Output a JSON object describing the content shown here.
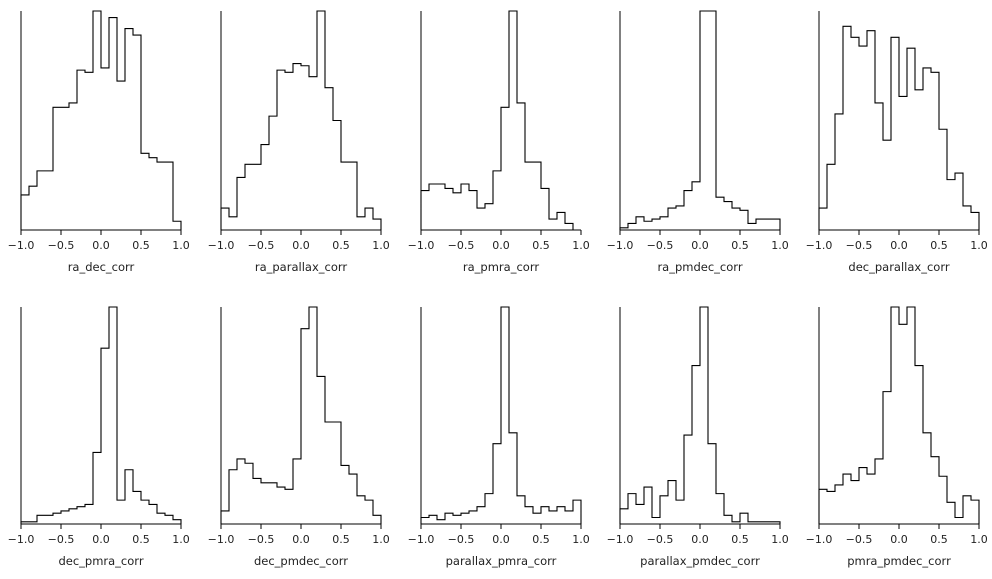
{
  "chart_data": [
    {
      "type": "histogram",
      "xlabel": "ra_dec_corr",
      "xlim": [
        -1.0,
        1.0
      ],
      "ylim": [
        0,
        1
      ],
      "xticks": [
        "−1.0",
        "−0.5",
        "0.0",
        "0.5",
        "1.0"
      ],
      "bin_edges": [
        -1.0,
        -0.9,
        -0.8,
        -0.7,
        -0.6,
        -0.5,
        -0.4,
        -0.3,
        -0.2,
        -0.1,
        0.0,
        0.1,
        0.2,
        0.3,
        0.4,
        0.5,
        0.6,
        0.7,
        0.8,
        0.9,
        1.0
      ],
      "values": [
        0.16,
        0.2,
        0.27,
        0.27,
        0.56,
        0.56,
        0.58,
        0.73,
        0.72,
        1.0,
        0.74,
        0.97,
        0.68,
        0.92,
        0.89,
        0.35,
        0.33,
        0.31,
        0.31,
        0.04
      ]
    },
    {
      "type": "histogram",
      "xlabel": "ra_parallax_corr",
      "xlim": [
        -1.0,
        1.0
      ],
      "ylim": [
        0,
        1
      ],
      "xticks": [
        "−1.0",
        "−0.5",
        "0.0",
        "0.5",
        "1.0"
      ],
      "bin_edges": [
        -1.0,
        -0.9,
        -0.8,
        -0.7,
        -0.6,
        -0.5,
        -0.4,
        -0.3,
        -0.2,
        -0.1,
        0.0,
        0.1,
        0.2,
        0.3,
        0.4,
        0.5,
        0.6,
        0.7,
        0.8,
        0.9,
        1.0
      ],
      "values": [
        0.1,
        0.06,
        0.24,
        0.3,
        0.3,
        0.39,
        0.52,
        0.73,
        0.72,
        0.76,
        0.75,
        0.7,
        1.0,
        0.65,
        0.5,
        0.31,
        0.31,
        0.06,
        0.1,
        0.05
      ]
    },
    {
      "type": "histogram",
      "xlabel": "ra_pmra_corr",
      "xlim": [
        -1.0,
        1.0
      ],
      "ylim": [
        0,
        1
      ],
      "xticks": [
        "−1.0",
        "−0.5",
        "0.0",
        "0.5",
        "1.0"
      ],
      "bin_edges": [
        -1.0,
        -0.9,
        -0.8,
        -0.7,
        -0.6,
        -0.5,
        -0.4,
        -0.3,
        -0.2,
        -0.1,
        0.0,
        0.1,
        0.2,
        0.3,
        0.4,
        0.5,
        0.6,
        0.7,
        0.8,
        0.9,
        1.0
      ],
      "values": [
        0.18,
        0.21,
        0.21,
        0.19,
        0.17,
        0.21,
        0.18,
        0.1,
        0.12,
        0.27,
        0.56,
        1.0,
        0.58,
        0.31,
        0.31,
        0.19,
        0.05,
        0.08,
        0.03,
        0.0
      ]
    },
    {
      "type": "histogram",
      "xlabel": "ra_pmdec_corr",
      "xlim": [
        -1.0,
        1.0
      ],
      "ylim": [
        0,
        1
      ],
      "xticks": [
        "−1.0",
        "−0.5",
        "0.0",
        "0.5",
        "1.0"
      ],
      "bin_edges": [
        -1.0,
        -0.9,
        -0.8,
        -0.7,
        -0.6,
        -0.5,
        -0.4,
        -0.3,
        -0.2,
        -0.1,
        0.0,
        0.1,
        0.2,
        0.3,
        0.4,
        0.5,
        0.6,
        0.7,
        0.8,
        0.9,
        1.0
      ],
      "values": [
        0.01,
        0.03,
        0.06,
        0.04,
        0.05,
        0.06,
        0.1,
        0.11,
        0.18,
        0.22,
        1.0,
        1.0,
        0.15,
        0.13,
        0.1,
        0.09,
        0.03,
        0.05,
        0.05,
        0.05
      ]
    },
    {
      "type": "histogram",
      "xlabel": "dec_parallax_corr",
      "xlim": [
        -1.0,
        1.0
      ],
      "ylim": [
        0,
        1
      ],
      "xticks": [
        "−1.0",
        "−0.5",
        "0.0",
        "0.5",
        "1.0"
      ],
      "bin_edges": [
        -1.0,
        -0.9,
        -0.8,
        -0.7,
        -0.6,
        -0.5,
        -0.4,
        -0.3,
        -0.2,
        -0.1,
        0.0,
        0.1,
        0.2,
        0.3,
        0.4,
        0.5,
        0.6,
        0.7,
        0.8,
        0.9,
        1.0
      ],
      "values": [
        0.1,
        0.3,
        0.53,
        0.93,
        0.88,
        0.84,
        0.91,
        0.58,
        0.41,
        0.88,
        0.61,
        0.83,
        0.64,
        0.74,
        0.72,
        0.46,
        0.23,
        0.26,
        0.11,
        0.08
      ]
    },
    {
      "type": "histogram",
      "xlabel": "dec_pmra_corr",
      "xlim": [
        -1.0,
        1.0
      ],
      "ylim": [
        0,
        1
      ],
      "xticks": [
        "−1.0",
        "−0.5",
        "0.0",
        "0.5",
        "1.0"
      ],
      "bin_edges": [
        -1.0,
        -0.9,
        -0.8,
        -0.7,
        -0.6,
        -0.5,
        -0.4,
        -0.3,
        -0.2,
        -0.1,
        0.0,
        0.1,
        0.2,
        0.3,
        0.4,
        0.5,
        0.6,
        0.7,
        0.8,
        0.9,
        1.0
      ],
      "values": [
        0.01,
        0.01,
        0.04,
        0.04,
        0.05,
        0.06,
        0.07,
        0.08,
        0.09,
        0.33,
        0.81,
        1.0,
        0.11,
        0.25,
        0.15,
        0.11,
        0.09,
        0.05,
        0.04,
        0.02
      ]
    },
    {
      "type": "histogram",
      "xlabel": "dec_pmdec_corr",
      "xlim": [
        -1.0,
        1.0
      ],
      "ylim": [
        0,
        1
      ],
      "xticks": [
        "−1.0",
        "−0.5",
        "0.0",
        "0.5",
        "1.0"
      ],
      "bin_edges": [
        -1.0,
        -0.9,
        -0.8,
        -0.7,
        -0.6,
        -0.5,
        -0.4,
        -0.3,
        -0.2,
        -0.1,
        0.0,
        0.1,
        0.2,
        0.3,
        0.4,
        0.5,
        0.6,
        0.7,
        0.8,
        0.9,
        1.0
      ],
      "values": [
        0.06,
        0.25,
        0.3,
        0.28,
        0.21,
        0.19,
        0.19,
        0.17,
        0.16,
        0.3,
        0.9,
        1.0,
        0.68,
        0.47,
        0.47,
        0.27,
        0.23,
        0.13,
        0.11,
        0.04
      ]
    },
    {
      "type": "histogram",
      "xlabel": "parallax_pmra_corr",
      "xlim": [
        -1.0,
        1.0
      ],
      "ylim": [
        0,
        1
      ],
      "xticks": [
        "−1.0",
        "−0.5",
        "0.0",
        "0.5",
        "1.0"
      ],
      "bin_edges": [
        -1.0,
        -0.9,
        -0.8,
        -0.7,
        -0.6,
        -0.5,
        -0.4,
        -0.3,
        -0.2,
        -0.1,
        0.0,
        0.1,
        0.2,
        0.3,
        0.4,
        0.5,
        0.6,
        0.7,
        0.8,
        0.9,
        1.0
      ],
      "values": [
        0.03,
        0.04,
        0.02,
        0.05,
        0.04,
        0.05,
        0.06,
        0.08,
        0.14,
        0.37,
        1.0,
        0.42,
        0.13,
        0.08,
        0.05,
        0.08,
        0.06,
        0.08,
        0.06,
        0.11
      ]
    },
    {
      "type": "histogram",
      "xlabel": "parallax_pmdec_corr",
      "xlim": [
        -1.0,
        1.0
      ],
      "ylim": [
        0,
        1
      ],
      "xticks": [
        "−1.0",
        "−0.5",
        "0.0",
        "0.5",
        "1.0"
      ],
      "bin_edges": [
        -1.0,
        -0.9,
        -0.8,
        -0.7,
        -0.6,
        -0.5,
        -0.4,
        -0.3,
        -0.2,
        -0.1,
        0.0,
        0.1,
        0.2,
        0.3,
        0.4,
        0.5,
        0.6,
        0.7,
        0.8,
        0.9,
        1.0
      ],
      "values": [
        0.07,
        0.14,
        0.09,
        0.17,
        0.03,
        0.13,
        0.2,
        0.11,
        0.41,
        0.73,
        1.0,
        0.37,
        0.14,
        0.04,
        0.01,
        0.05,
        0.01,
        0.01,
        0.01,
        0.01
      ]
    },
    {
      "type": "histogram",
      "xlabel": "pmra_pmdec_corr",
      "xlim": [
        -1.0,
        1.0
      ],
      "ylim": [
        0,
        1
      ],
      "xticks": [
        "−1.0",
        "−0.5",
        "0.0",
        "0.5",
        "1.0"
      ],
      "bin_edges": [
        -1.0,
        -0.9,
        -0.8,
        -0.7,
        -0.6,
        -0.5,
        -0.4,
        -0.3,
        -0.2,
        -0.1,
        0.0,
        0.1,
        0.2,
        0.3,
        0.4,
        0.5,
        0.6,
        0.7,
        0.8,
        0.9,
        1.0
      ],
      "values": [
        0.16,
        0.15,
        0.18,
        0.23,
        0.2,
        0.26,
        0.23,
        0.3,
        0.61,
        1.0,
        0.92,
        1.0,
        0.73,
        0.42,
        0.31,
        0.22,
        0.1,
        0.03,
        0.13,
        0.11
      ]
    }
  ]
}
